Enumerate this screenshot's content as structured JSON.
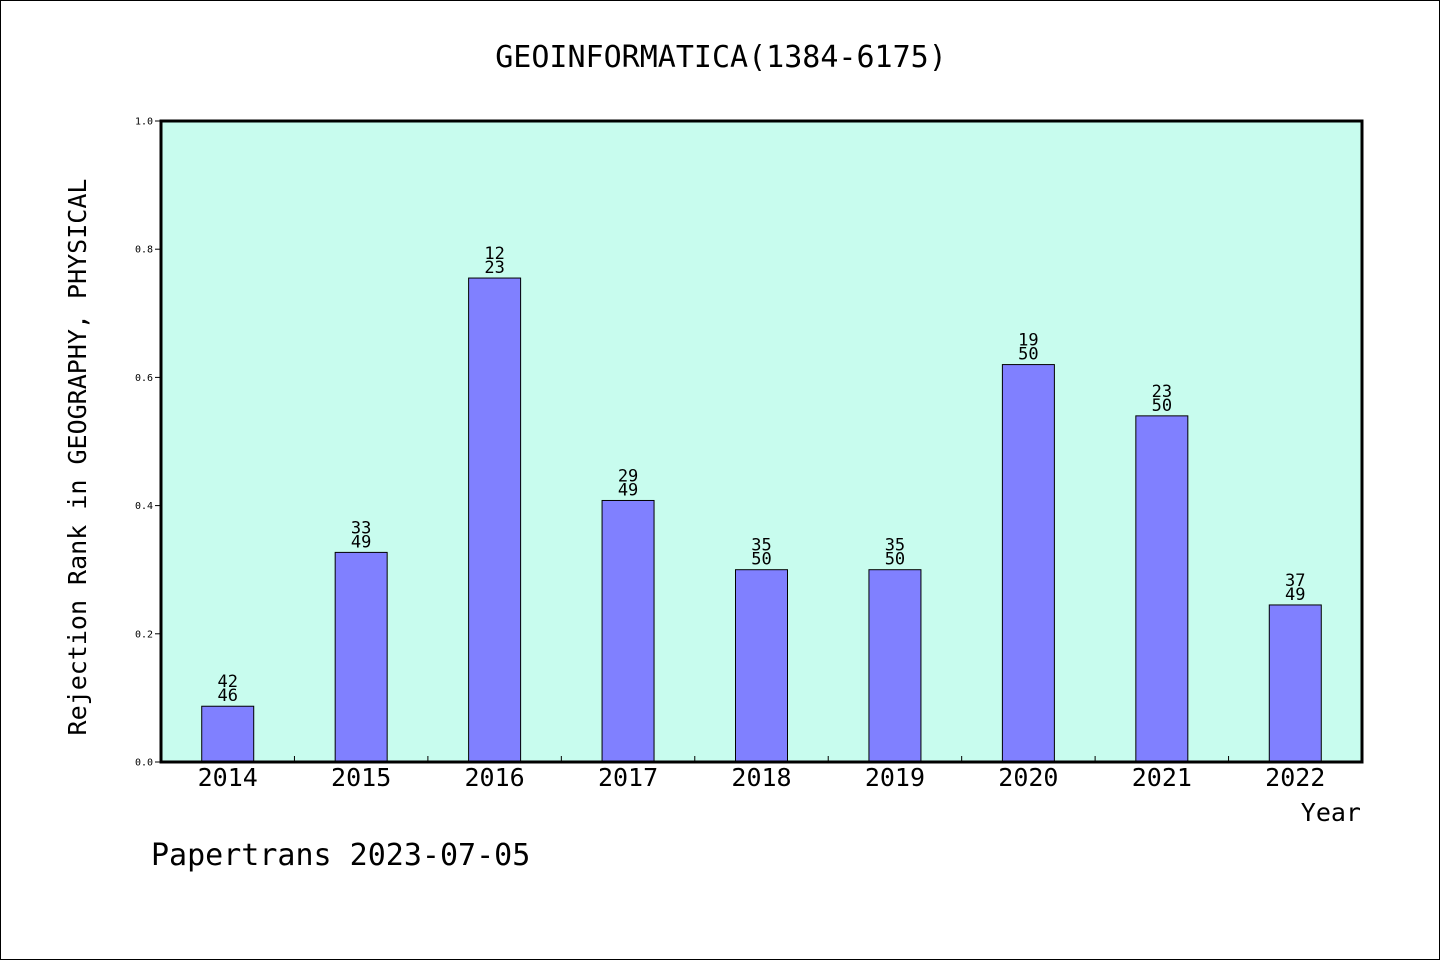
{
  "chart_data": {
    "type": "bar",
    "title": "GEOINFORMATICA(1384-6175)",
    "xlabel": "Year",
    "ylabel": "Rejection Rank in GEOGRAPHY, PHYSICAL",
    "ylim": [
      0,
      1.0
    ],
    "yticks": [
      "0.0",
      "0.2",
      "0.4",
      "0.6",
      "0.8",
      "1.0"
    ],
    "categories": [
      "2014",
      "2015",
      "2016",
      "2017",
      "2018",
      "2019",
      "2020",
      "2021",
      "2022"
    ],
    "values": [
      0.087,
      0.327,
      0.755,
      0.408,
      0.3,
      0.3,
      0.62,
      0.54,
      0.245
    ],
    "labels_top": [
      "42",
      "33",
      "12",
      "29",
      "35",
      "35",
      "19",
      "23",
      "37"
    ],
    "labels_bottom": [
      "46",
      "49",
      "23",
      "49",
      "50",
      "50",
      "50",
      "50",
      "49"
    ],
    "grid": false,
    "colors": {
      "plot_background": "#c8fcee",
      "bar_fill": "#8080ff",
      "bar_stroke": "#000000"
    }
  },
  "footer": "Papertrans 2023-07-05"
}
